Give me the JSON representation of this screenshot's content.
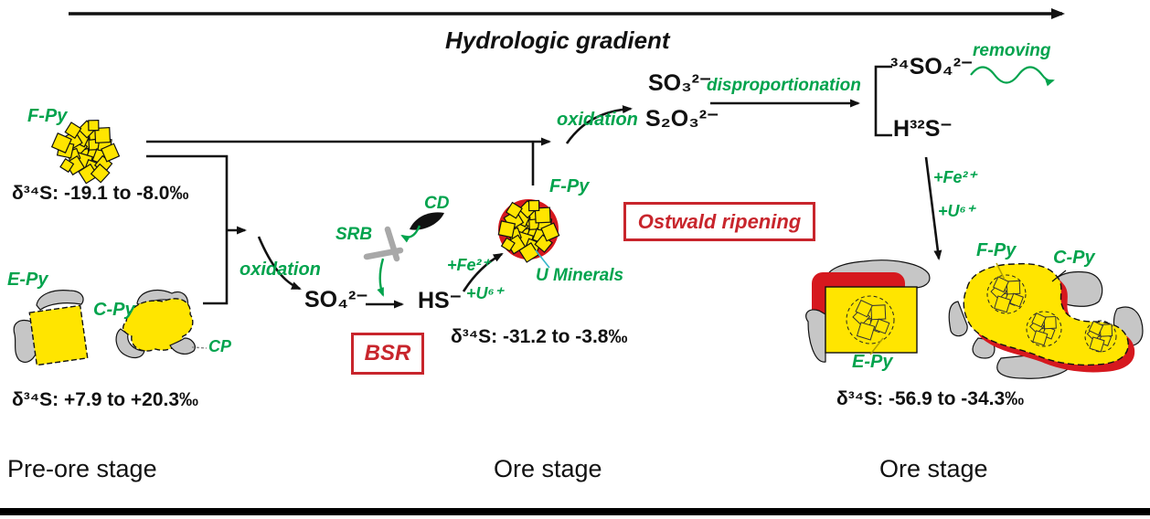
{
  "header": {
    "title": "Hydrologic gradient"
  },
  "stages": {
    "pre_ore": "Pre-ore stage",
    "ore_1": "Ore stage",
    "ore_2": "Ore stage"
  },
  "pre_ore": {
    "framboidal_pyrite_label": "F-Py",
    "framboidal_isotope": "δ³⁴S: -19.1 to -8.0‰",
    "euhedral_pyrite_label": "E-Py",
    "colloform_pyrite_label": "C-Py",
    "chalcopyrite_label": "CP",
    "euhedral_isotope": "δ³⁴S: +7.9 to +20.3‰"
  },
  "reaction_path": {
    "oxidation_1": "oxidation",
    "sulfate": "SO₄²⁻",
    "srb_label": "SRB",
    "cd_label": "CD",
    "bisulfide": "HS⁻",
    "add_fe_1": "+Fe²⁺",
    "add_u_1": "+U⁶⁺",
    "bsr_box": "BSR"
  },
  "ore_stage": {
    "framboidal_pyrite_label": "F-Py",
    "u_minerals_label": "U Minerals",
    "isotope": "δ³⁴S: -31.2 to -3.8‰",
    "ostwald_box": "Ostwald ripening",
    "oxidation_2": "oxidation",
    "sulfite": "SO₃²⁻",
    "thiosulfate": "S₂O₃²⁻",
    "disproportionation": "disproportionation",
    "heavy_sulfate": "³⁴SO₄²⁻",
    "light_sulfide": "H³²S⁻",
    "removing": "removing",
    "add_fe_2": "+Fe²⁺",
    "add_u_2": "+U⁶⁺"
  },
  "late_ore": {
    "framboidal_pyrite_label": "F-Py",
    "colloform_pyrite_label": "C-Py",
    "euhedral_pyrite_label": "E-Py",
    "isotope": "δ³⁴S: -56.9 to -34.3‰"
  },
  "colors": {
    "pyrite_yellow": "#FFE500",
    "label_green": "#00A34D",
    "u_mineral_red": "#D6181E",
    "annotation_red": "#C8252C",
    "gangue_gray": "#C6C6C6"
  }
}
